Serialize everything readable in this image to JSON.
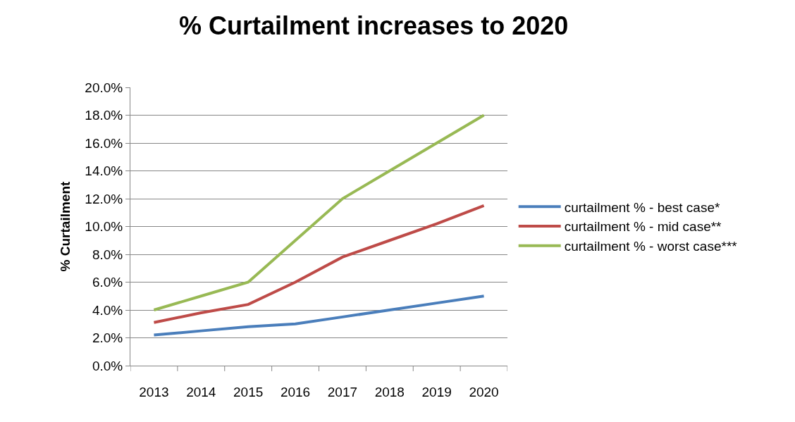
{
  "chart_data": {
    "type": "line",
    "title": "% Curtailment increases to 2020",
    "ylabel": "% Curtailment",
    "categories": [
      "2013",
      "2014",
      "2015",
      "2016",
      "2017",
      "2018",
      "2019",
      "2020"
    ],
    "series": [
      {
        "name": "curtailment % - best case*",
        "color": "#4a7ebb",
        "values": [
          2.2,
          2.5,
          2.8,
          3.0,
          3.5,
          4.0,
          4.5,
          5.0
        ]
      },
      {
        "name": "curtailment % - mid case**",
        "color": "#be4b48",
        "values": [
          3.1,
          3.8,
          4.4,
          6.0,
          7.8,
          9.0,
          10.2,
          11.5
        ]
      },
      {
        "name": "curtailment % - worst case***",
        "color": "#98b954",
        "values": [
          4.0,
          5.0,
          6.0,
          9.0,
          12.0,
          14.0,
          16.0,
          18.0
        ]
      }
    ],
    "ylim": [
      0,
      20
    ],
    "yticks": [
      {
        "value": 0,
        "label": "0.0%"
      },
      {
        "value": 2,
        "label": "2.0%"
      },
      {
        "value": 4,
        "label": "4.0%"
      },
      {
        "value": 6,
        "label": "6.0%"
      },
      {
        "value": 8,
        "label": "8.0%"
      },
      {
        "value": 10,
        "label": "10.0%"
      },
      {
        "value": 12,
        "label": "12.0%"
      },
      {
        "value": 14,
        "label": "14.0%"
      },
      {
        "value": 16,
        "label": "16.0%"
      },
      {
        "value": 18,
        "label": "18.0%"
      },
      {
        "value": 20,
        "label": "20.0%"
      }
    ],
    "grid": "y",
    "legend": "right",
    "marker": "none",
    "line_style": "solid"
  }
}
